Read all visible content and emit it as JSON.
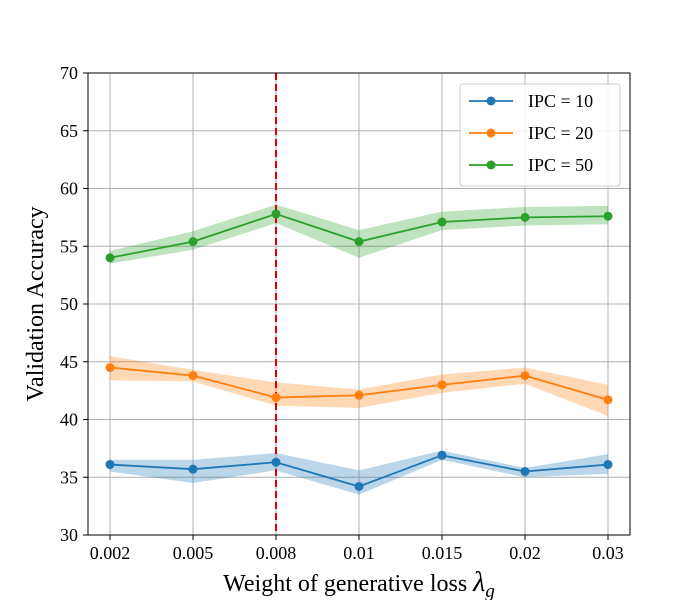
{
  "chart_data": {
    "type": "line",
    "title": "",
    "xlabel": "Weight of generative loss",
    "xlabel_symbol": "λ",
    "xlabel_subscript": "g",
    "ylabel": "Validation Accuracy",
    "categories": [
      "0.002",
      "0.005",
      "0.008",
      "0.01",
      "0.015",
      "0.02",
      "0.03"
    ],
    "ylim": [
      30,
      70
    ],
    "yticks": [
      30,
      35,
      40,
      45,
      50,
      55,
      60,
      65,
      70
    ],
    "grid": true,
    "legend_position": "top-right",
    "vline": {
      "category": "0.008",
      "color": "#e00000",
      "style": "dashed"
    },
    "series": [
      {
        "name": "IPC = 10",
        "color": "#1f77b4",
        "values": [
          36.1,
          35.7,
          36.3,
          34.2,
          36.9,
          35.5,
          36.1
        ],
        "lower": [
          35.5,
          34.5,
          35.6,
          33.5,
          36.5,
          35.0,
          35.3
        ],
        "upper": [
          36.5,
          36.5,
          37.1,
          35.6,
          37.3,
          35.8,
          37.0
        ]
      },
      {
        "name": "IPC = 20",
        "color": "#ff7f0e",
        "values": [
          44.5,
          43.8,
          41.9,
          42.1,
          43.0,
          43.8,
          41.7
        ],
        "lower": [
          43.4,
          43.3,
          41.2,
          41.0,
          42.3,
          43.1,
          40.3
        ],
        "upper": [
          45.5,
          44.3,
          43.2,
          42.6,
          43.9,
          44.5,
          43.0
        ]
      },
      {
        "name": "IPC = 50",
        "color": "#2ca02c",
        "values": [
          54.0,
          55.4,
          57.8,
          55.4,
          57.1,
          57.5,
          57.6
        ],
        "lower": [
          53.5,
          54.7,
          57.0,
          54.0,
          56.4,
          56.8,
          56.9
        ],
        "upper": [
          54.6,
          56.3,
          58.6,
          56.4,
          58.0,
          58.4,
          58.5
        ]
      }
    ]
  }
}
